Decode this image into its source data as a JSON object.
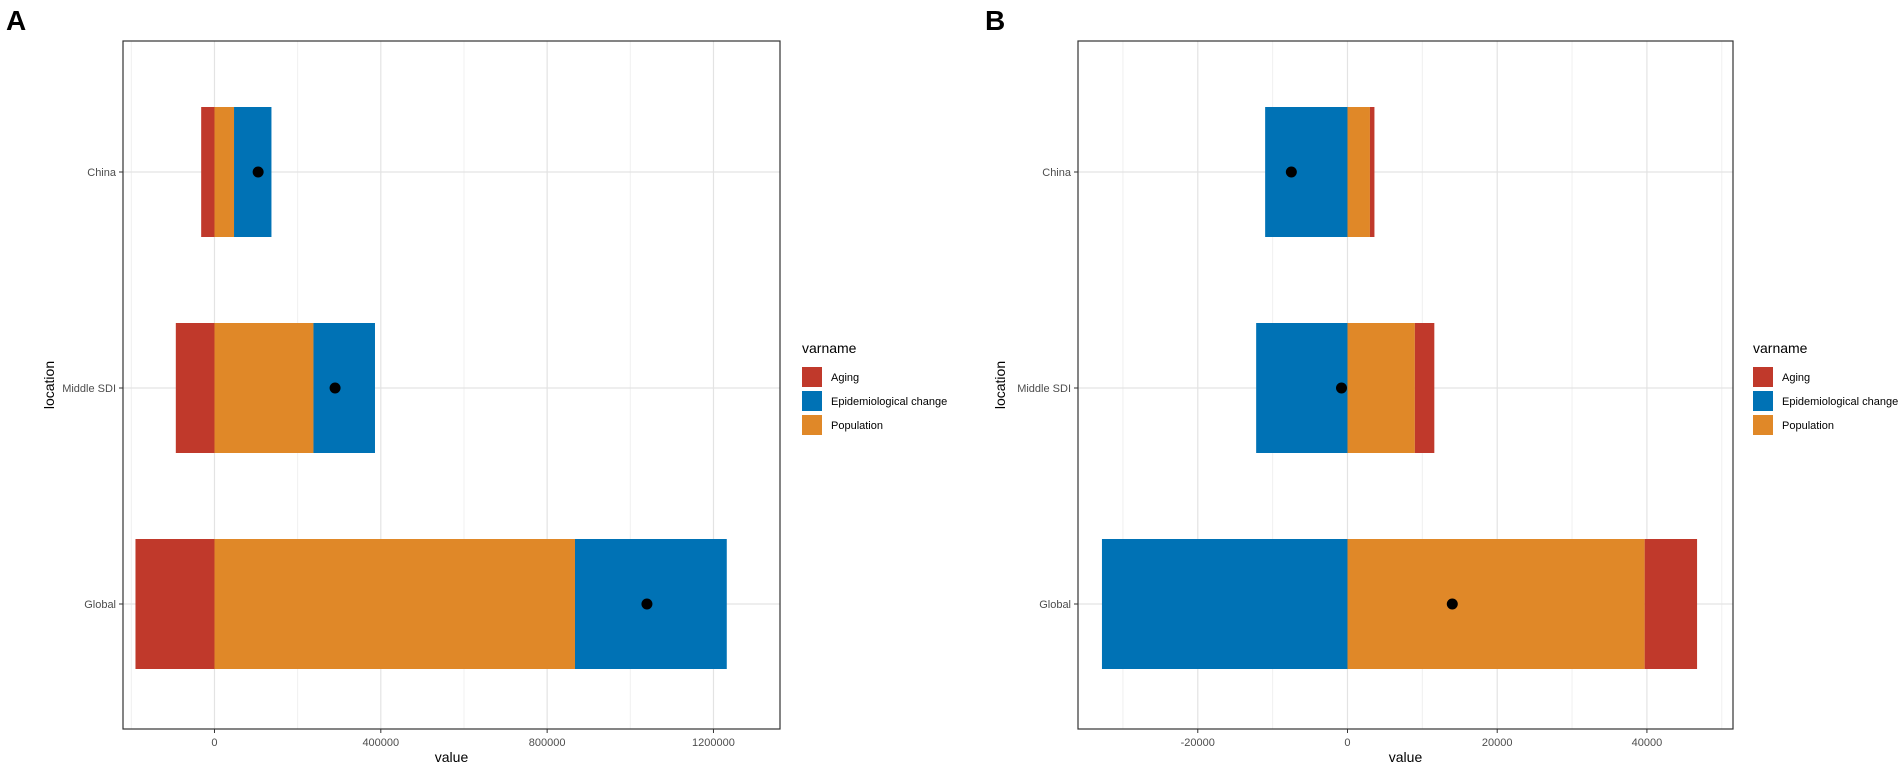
{
  "chart_data": [
    {
      "panel": "A",
      "type": "bar",
      "orientation": "horizontal",
      "stacked": "diverging",
      "xlabel": "value",
      "ylabel": "location",
      "xlim": [
        -220000,
        1360000
      ],
      "xticks": [
        0,
        400000,
        800000,
        1200000
      ],
      "xtick_labels": [
        "0",
        "400000",
        "800000",
        "1200000"
      ],
      "categories": [
        "China",
        "Middle SDI",
        "Global"
      ],
      "series": [
        {
          "name": "Aging",
          "color": "#C0392B",
          "values": [
            -32000,
            -93000,
            -190000
          ]
        },
        {
          "name": "Epidemiological change",
          "color": "#0072B5",
          "values": [
            90000,
            148000,
            365000
          ]
        },
        {
          "name": "Population",
          "color": "#E08828",
          "values": [
            47000,
            238000,
            867000
          ]
        }
      ],
      "stack_order": [
        "Population",
        "Epidemiological change"
      ],
      "overall": [
        105000,
        290000,
        1040000
      ],
      "legend": {
        "title": "varname",
        "position": "right"
      },
      "grid": true
    },
    {
      "panel": "B",
      "type": "bar",
      "orientation": "horizontal",
      "stacked": "diverging",
      "xlabel": "value",
      "ylabel": "location",
      "xlim": [
        -36000,
        51500
      ],
      "xticks": [
        -20000,
        0,
        20000,
        40000
      ],
      "xtick_labels": [
        "-20000",
        "0",
        "20000",
        "40000"
      ],
      "categories": [
        "China",
        "Middle SDI",
        "Global"
      ],
      "series": [
        {
          "name": "Aging",
          "color": "#C0392B",
          "values": [
            600,
            2600,
            7000
          ]
        },
        {
          "name": "Epidemiological change",
          "color": "#0072B5",
          "values": [
            -11000,
            -12200,
            -32800
          ]
        },
        {
          "name": "Population",
          "color": "#E08828",
          "values": [
            3000,
            9000,
            39700
          ]
        }
      ],
      "stack_order": [
        "Population",
        "Aging"
      ],
      "overall": [
        -7500,
        -800,
        14000
      ],
      "legend": {
        "title": "varname",
        "position": "right"
      },
      "grid": true
    }
  ]
}
